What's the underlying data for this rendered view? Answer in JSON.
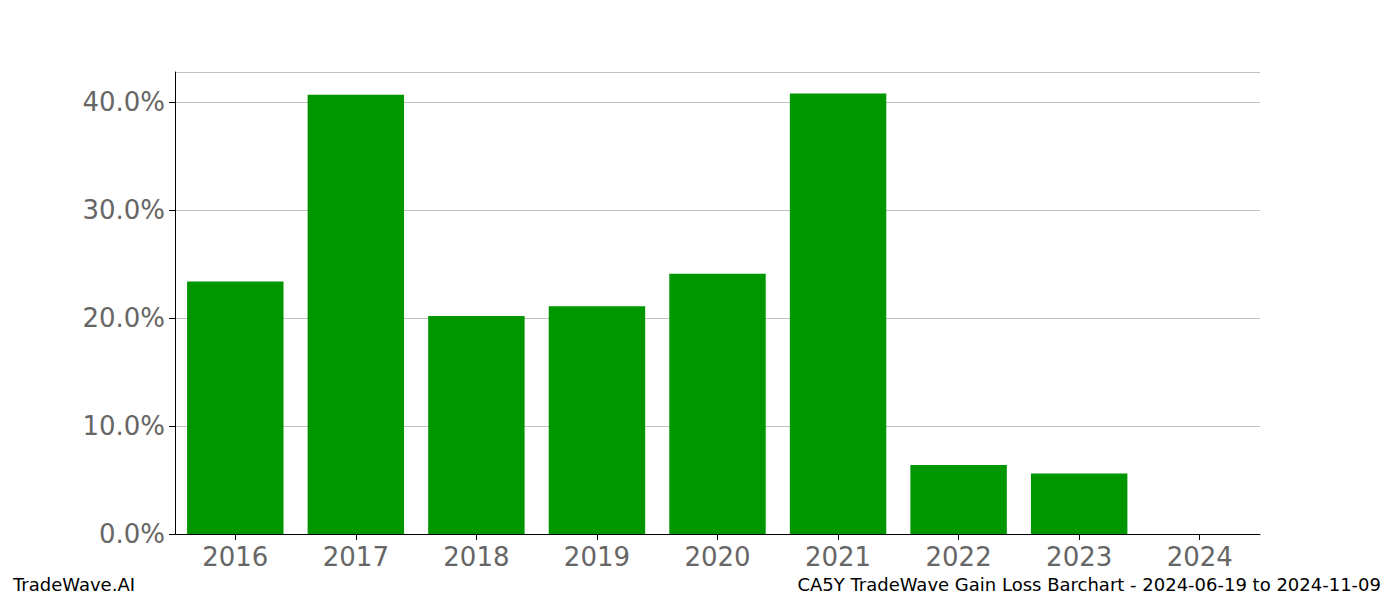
{
  "chart_data": {
    "type": "bar",
    "title": "CA5Y TradeWave Gain Loss Barchart - 2024-06-19 to 2024-11-09",
    "annotations": [
      "TradeWave.AI"
    ],
    "categories": [
      "2016",
      "2017",
      "2018",
      "2019",
      "2020",
      "2021",
      "2022",
      "2023",
      "2024"
    ],
    "values": [
      23.4,
      40.7,
      20.2,
      21.1,
      24.1,
      40.8,
      6.4,
      5.6,
      0
    ],
    "color": "#009600",
    "ylim": [
      0,
      42.8
    ],
    "yticks": [
      {
        "value": 0,
        "label": "0.0%"
      },
      {
        "value": 10,
        "label": "10.0%"
      },
      {
        "value": 20,
        "label": "20.0%"
      },
      {
        "value": 30,
        "label": "30.0%"
      },
      {
        "value": 40,
        "label": "40.0%"
      }
    ],
    "grid": true
  }
}
